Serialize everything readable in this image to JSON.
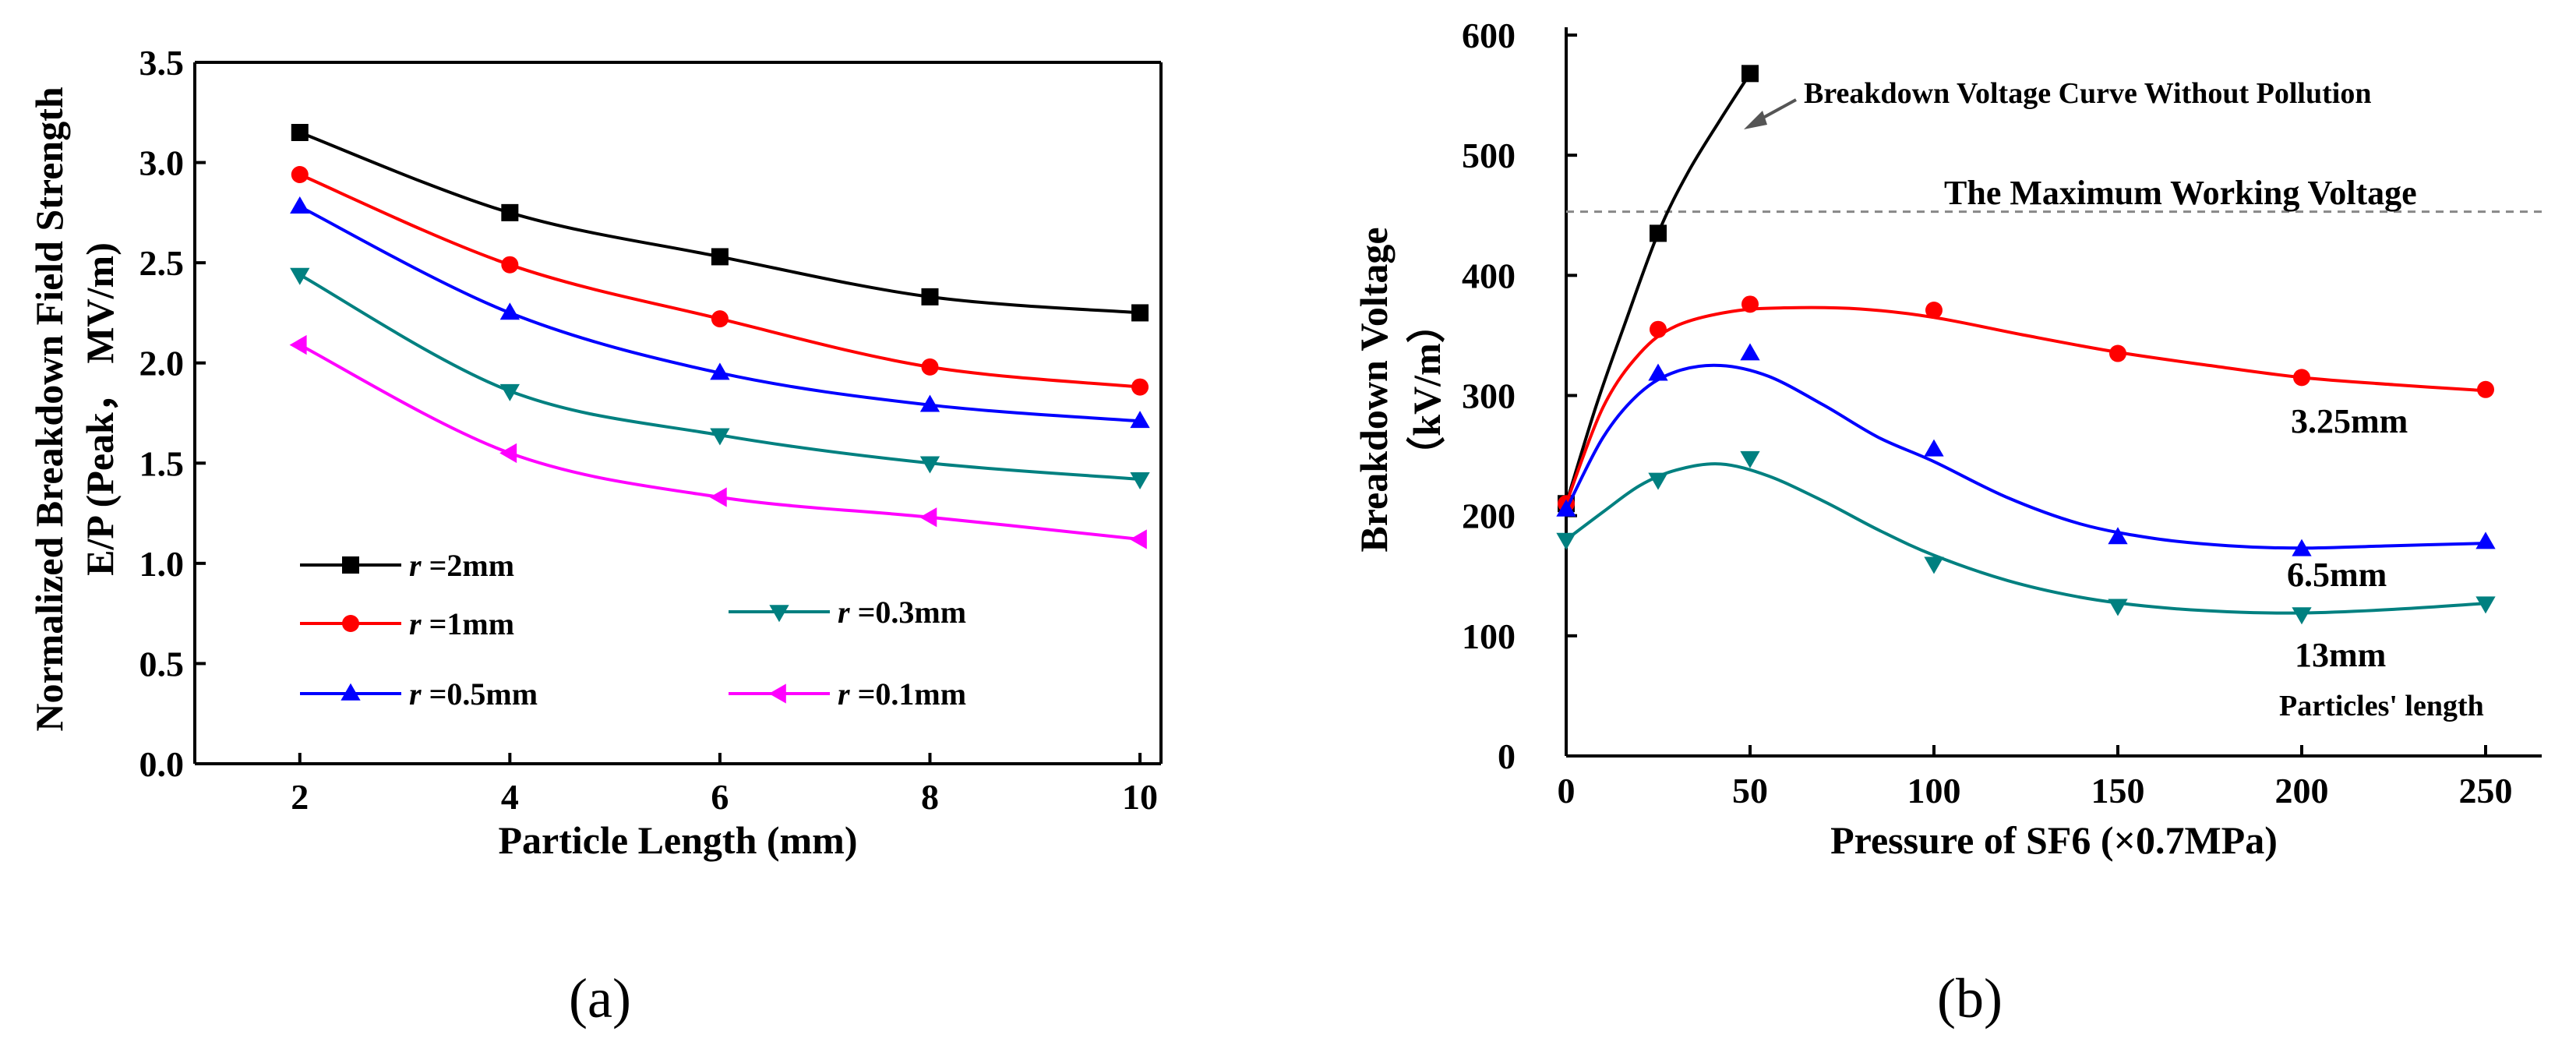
{
  "chart_data": [
    {
      "type": "line",
      "panel_label": "(a)",
      "xlabel": "Particle Length (mm)",
      "ylabel_lines": [
        "Normalized Breakdown Field Strength",
        "E/P (Peak，  MV/m)"
      ],
      "x": [
        2,
        4,
        6,
        8,
        10
      ],
      "xlim": [
        1,
        10.2
      ],
      "ylim": [
        0,
        3.5
      ],
      "xticks": [
        2,
        4,
        6,
        8,
        10
      ],
      "yticks": [
        0.0,
        0.5,
        1.0,
        1.5,
        2.0,
        2.5,
        3.0,
        3.5
      ],
      "ytick_labels": [
        "0.0",
        "0.5",
        "1.0",
        "1.5",
        "2.0",
        "2.5",
        "3.0",
        "3.5"
      ],
      "series": [
        {
          "name": "r =2mm",
          "italic": "r",
          "rest": " =2mm",
          "color": "#000000",
          "marker": "square",
          "values": [
            3.15,
            2.75,
            2.53,
            2.33,
            2.25
          ]
        },
        {
          "name": "r =1mm",
          "italic": "r",
          "rest": " =1mm",
          "color": "#ff0000",
          "marker": "circle",
          "values": [
            2.94,
            2.49,
            2.22,
            1.98,
            1.88
          ]
        },
        {
          "name": "r =0.5mm",
          "italic": "r",
          "rest": " =0.5mm",
          "color": "#0000ff",
          "marker": "triangle-up",
          "values": [
            2.78,
            2.25,
            1.95,
            1.79,
            1.71
          ]
        },
        {
          "name": "r =0.3mm",
          "italic": "r",
          "rest": " =0.3mm",
          "color": "#008080",
          "marker": "triangle-down",
          "values": [
            2.44,
            1.86,
            1.64,
            1.5,
            1.42
          ]
        },
        {
          "name": "r =0.1mm",
          "italic": "r",
          "rest": " =0.1mm",
          "color": "#ff00ff",
          "marker": "triangle-left",
          "values": [
            2.09,
            1.55,
            1.33,
            1.23,
            1.12
          ]
        }
      ]
    },
    {
      "type": "line",
      "panel_label": "(b)",
      "xlabel": "Pressure of SF6 (×0.7MPa)",
      "ylabel_lines": [
        "Breakdown Voltage",
        "（kV/m）"
      ],
      "xlim": [
        0,
        260
      ],
      "ylim": [
        0,
        600
      ],
      "xticks": [
        0,
        50,
        100,
        150,
        200,
        250
      ],
      "yticks": [
        0,
        100,
        200,
        300,
        400,
        500,
        600
      ],
      "series": [
        {
          "name": "Breakdown Voltage Curve Without Pollution",
          "color": "#000000",
          "marker": "square",
          "points": [
            [
              0,
              210
            ],
            [
              25,
              435
            ],
            [
              50,
              568
            ]
          ],
          "curve": [
            [
              0,
              210
            ],
            [
              8,
              290
            ],
            [
              16,
              360
            ],
            [
              25,
              435
            ],
            [
              33,
              485
            ],
            [
              42,
              530
            ],
            [
              50,
              568
            ]
          ]
        },
        {
          "name": "3.25mm",
          "color": "#ff0000",
          "marker": "circle",
          "points": [
            [
              0,
              210
            ],
            [
              25,
              355
            ],
            [
              50,
              376
            ],
            [
              100,
              371
            ],
            [
              150,
              335
            ],
            [
              200,
              315
            ],
            [
              250,
              305
            ]
          ],
          "curve": [
            [
              0,
              210
            ],
            [
              10,
              290
            ],
            [
              20,
              335
            ],
            [
              30,
              358
            ],
            [
              45,
              370
            ],
            [
              60,
              373
            ],
            [
              80,
              372
            ],
            [
              100,
              365
            ],
            [
              125,
              350
            ],
            [
              150,
              336
            ],
            [
              175,
              325
            ],
            [
              200,
              315
            ],
            [
              225,
              309
            ],
            [
              250,
              304
            ]
          ]
        },
        {
          "name": "6.5mm",
          "color": "#0000ff",
          "marker": "triangle-up",
          "points": [
            [
              0,
              205
            ],
            [
              25,
              318
            ],
            [
              50,
              335
            ],
            [
              100,
              255
            ],
            [
              150,
              182
            ],
            [
              200,
              172
            ],
            [
              250,
              178
            ]
          ],
          "curve": [
            [
              0,
              205
            ],
            [
              10,
              265
            ],
            [
              20,
              302
            ],
            [
              30,
              320
            ],
            [
              42,
              325
            ],
            [
              55,
              316
            ],
            [
              70,
              292
            ],
            [
              85,
              265
            ],
            [
              100,
              245
            ],
            [
              120,
              215
            ],
            [
              140,
              193
            ],
            [
              160,
              181
            ],
            [
              180,
              175
            ],
            [
              200,
              173
            ],
            [
              225,
              175
            ],
            [
              250,
              177
            ]
          ]
        },
        {
          "name": "13mm",
          "color": "#008080",
          "marker": "triangle-down",
          "points": [
            [
              0,
              180
            ],
            [
              25,
              230
            ],
            [
              50,
              248
            ],
            [
              100,
              160
            ],
            [
              150,
              125
            ],
            [
              200,
              118
            ],
            [
              250,
              127
            ]
          ],
          "curve": [
            [
              0,
              180
            ],
            [
              10,
              203
            ],
            [
              20,
              225
            ],
            [
              30,
              238
            ],
            [
              42,
              243
            ],
            [
              55,
              233
            ],
            [
              70,
              212
            ],
            [
              85,
              188
            ],
            [
              100,
              167
            ],
            [
              120,
              146
            ],
            [
              140,
              132
            ],
            [
              160,
              124
            ],
            [
              180,
              120
            ],
            [
              200,
              119
            ],
            [
              225,
              122
            ],
            [
              250,
              127
            ]
          ]
        }
      ],
      "reference_line": {
        "label": "The Maximum Working Voltage",
        "value": 453
      },
      "annotations": {
        "no_pollution": "Breakdown Voltage Curve Without Pollution",
        "s325": "3.25mm",
        "s65": "6.5mm",
        "s13": "13mm",
        "particles": "Particles' length"
      }
    }
  ]
}
